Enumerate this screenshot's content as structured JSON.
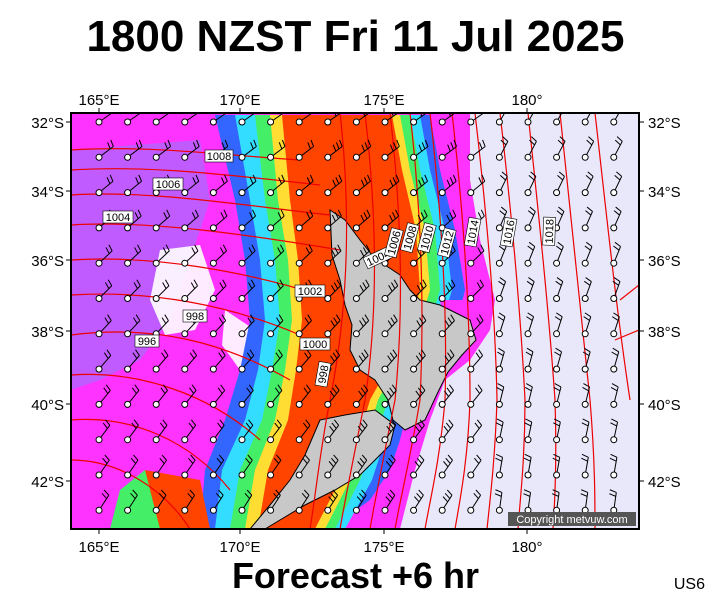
{
  "title": "1800 NZST Fri 11 Jul 2025",
  "subtitle": "Forecast +6 hr",
  "code": "US6",
  "copyright": "Copyright metvuw.com",
  "lon_labels": [
    "165°E",
    "170°E",
    "175°E",
    "180°"
  ],
  "lat_labels": [
    "32°S",
    "34°S",
    "36°S",
    "38°S",
    "40°S",
    "42°S"
  ],
  "isobar_labels": [
    "1008",
    "1006",
    "1004",
    "1002",
    "998",
    "996",
    "1000",
    "998",
    "1004",
    "1006",
    "1008",
    "1010",
    "1012",
    "1014",
    "1016",
    "1018"
  ],
  "colors": {
    "background": "#e8e8fa",
    "precip_light": "#ff33ff",
    "precip_mid": "#9955ff",
    "precip_blue": "#3366ff",
    "precip_cyan": "#33ddff",
    "precip_green": "#44ee66",
    "precip_yellow": "#ffdd33",
    "precip_orange": "#ff9933",
    "precip_heavy": "#ff4400",
    "isobar": "#ee0000",
    "land": "#c8c8c8"
  }
}
